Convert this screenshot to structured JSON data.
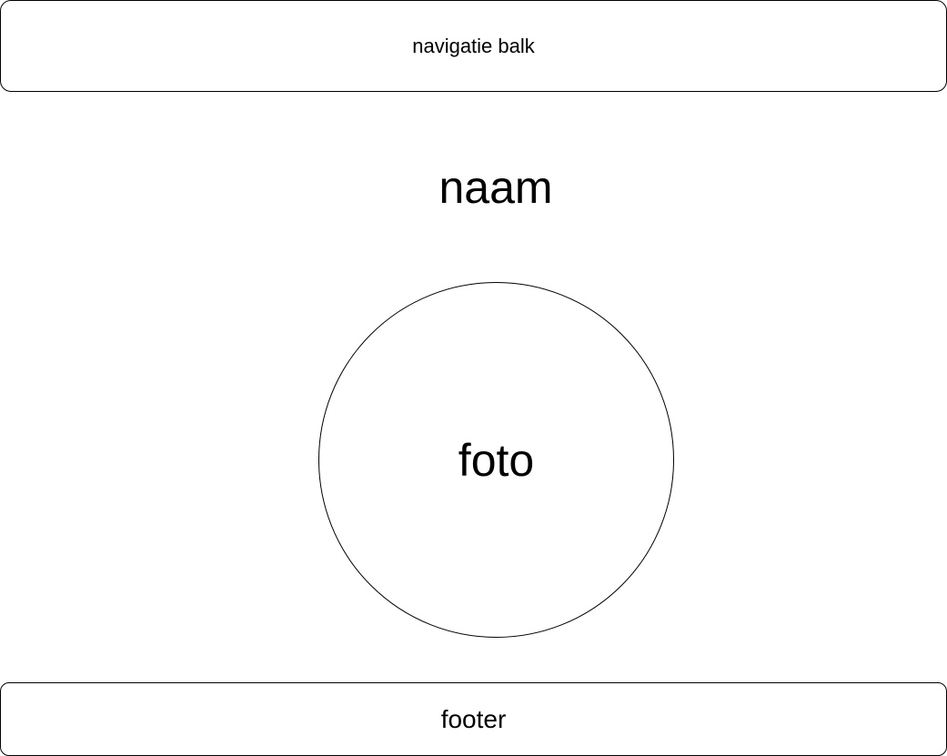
{
  "navigation": {
    "label": "navigatie balk"
  },
  "profile": {
    "name_label": "naam",
    "photo_label": "foto"
  },
  "footer": {
    "label": "footer"
  },
  "colors": {
    "stroke": "#000000",
    "background": "#ffffff",
    "text": "#000000"
  }
}
